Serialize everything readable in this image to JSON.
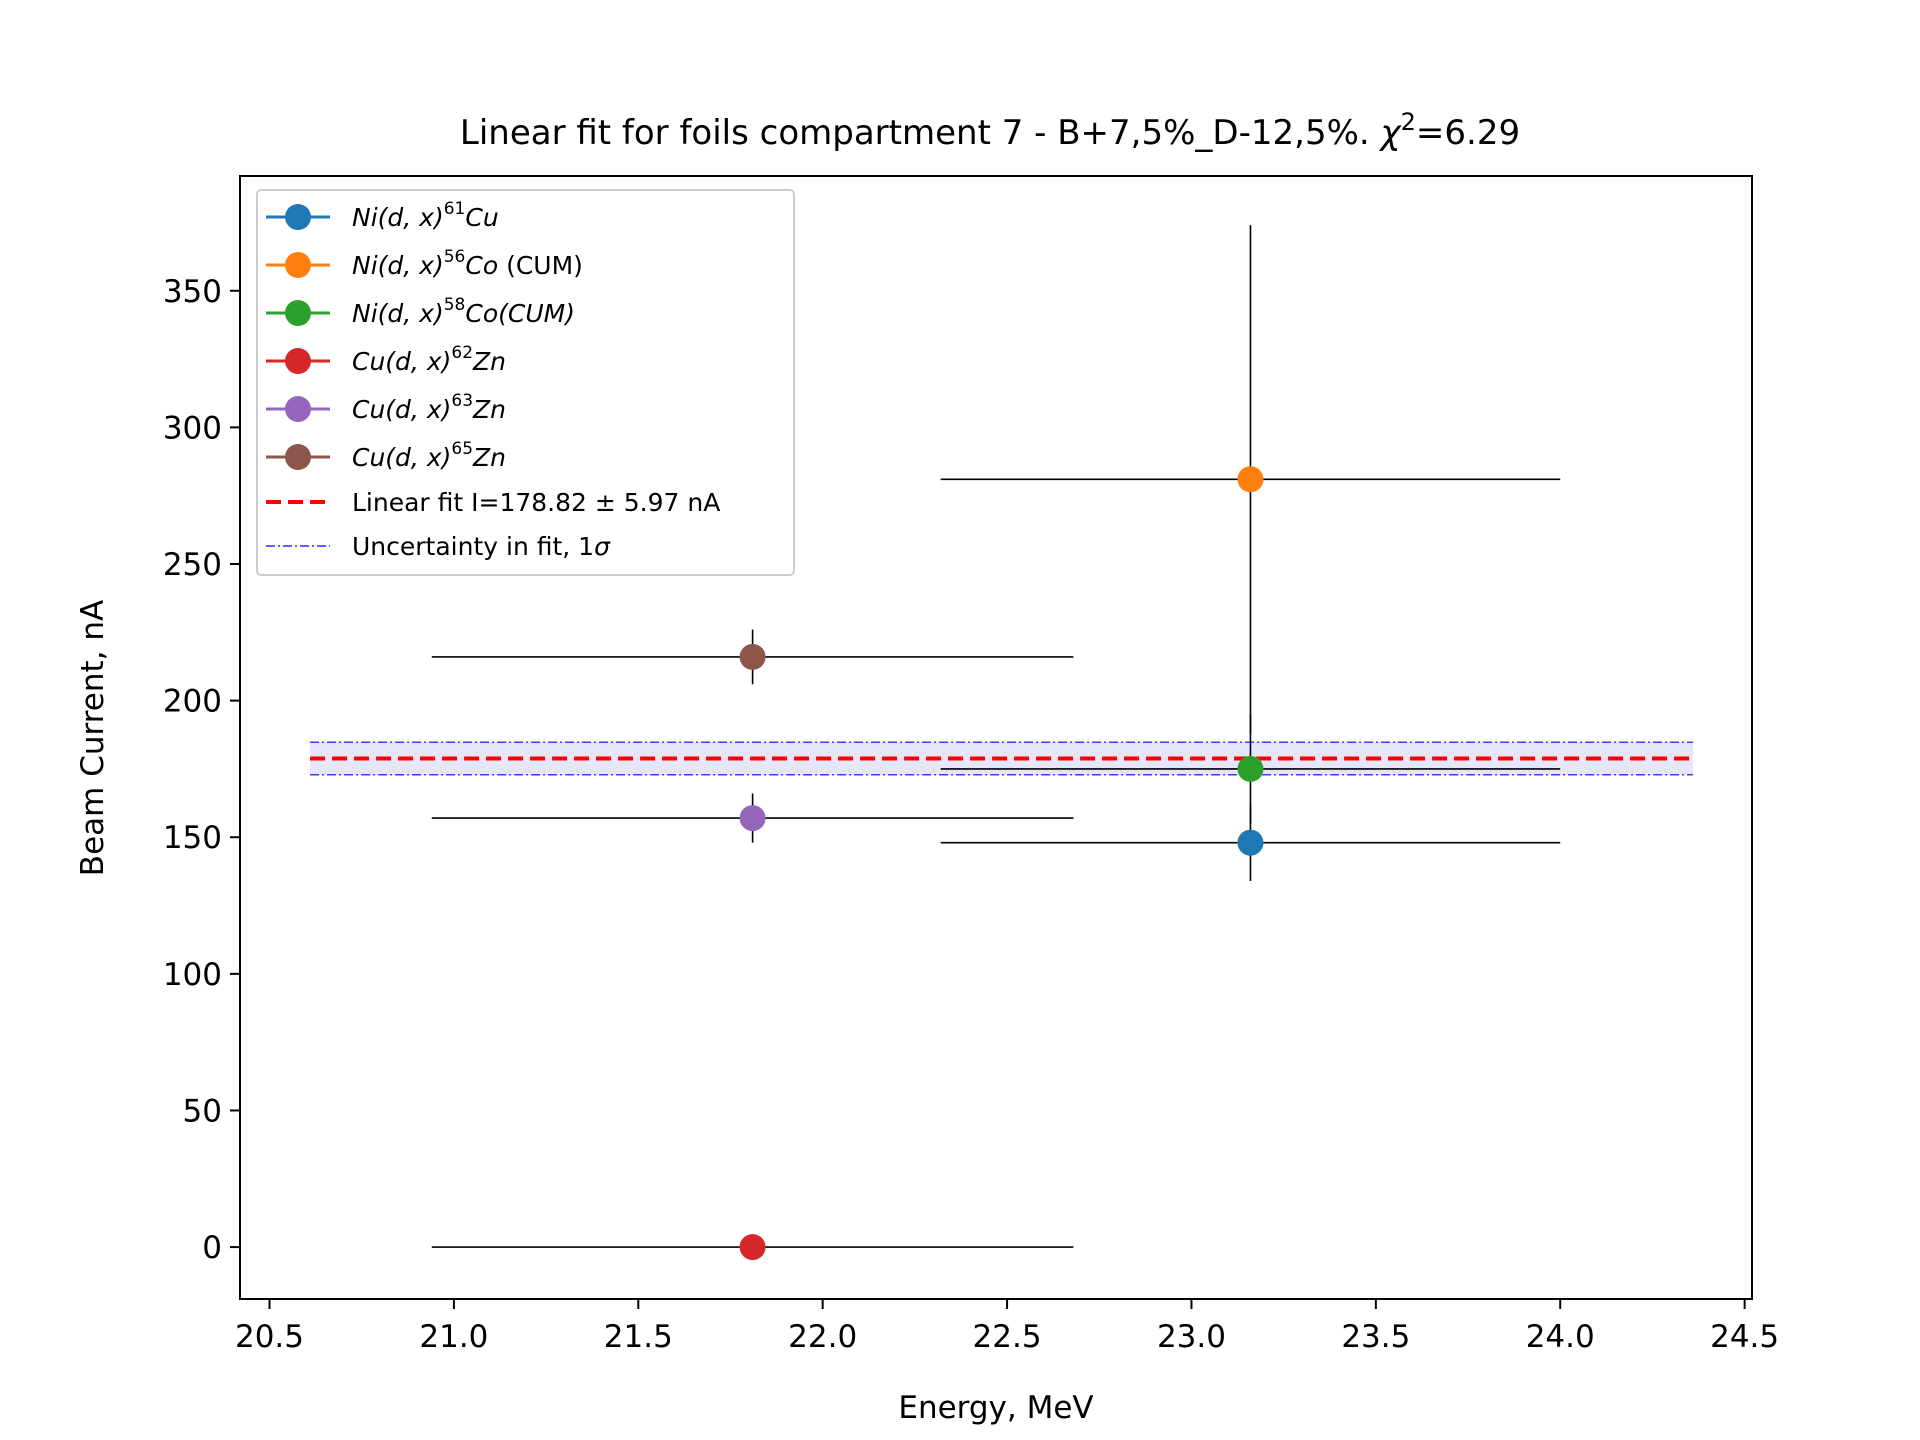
{
  "chart_data": {
    "type": "scatter",
    "title": "Linear fit for foils compartment 7 - B+7,5%_D-12,5%. χ²=6.29",
    "title_parts": {
      "main": "Linear fit for foils compartment 7 - B+7,5%_D-12,5%. ",
      "chi": "χ",
      "chi_sup": "2",
      "chi_value": "=6.29"
    },
    "xlabel": "Energy, MeV",
    "ylabel": "Beam Current, nA",
    "xlim": [
      20.42,
      24.52
    ],
    "ylim": [
      -19,
      392
    ],
    "xticks": [
      20.5,
      21.0,
      21.5,
      22.0,
      22.5,
      23.0,
      23.5,
      24.0,
      24.5
    ],
    "xtick_labels": [
      "20.5",
      "21.0",
      "21.5",
      "22.0",
      "22.5",
      "23.0",
      "23.5",
      "24.0",
      "24.5"
    ],
    "yticks": [
      0,
      50,
      100,
      150,
      200,
      250,
      300,
      350
    ],
    "ytick_labels": [
      "0",
      "50",
      "100",
      "150",
      "200",
      "250",
      "300",
      "350"
    ],
    "grid": false,
    "legend_position": "upper-left",
    "series": [
      {
        "name": "Ni(d,x)61Cu",
        "label": {
          "pre": "Ni(d, x)",
          "sup": "61",
          "post": "Cu",
          "suffix": ""
        },
        "color": "#1f77b4",
        "x": 23.16,
        "y": 148,
        "xerr": 0.84,
        "yerr": 14
      },
      {
        "name": "Ni(d,x)56Co (CUM)",
        "label": {
          "pre": "Ni(d, x)",
          "sup": "56",
          "post": "Co",
          "suffix": " (CUM)"
        },
        "color": "#ff7f0e",
        "x": 23.16,
        "y": 281,
        "xerr": 0.84,
        "yerr": 93
      },
      {
        "name": "Ni(d,x)58Co(CUM)",
        "label": {
          "pre": "Ni(d, x)",
          "sup": "58",
          "post": "Co(CUM)",
          "suffix": ""
        },
        "color": "#2ca02c",
        "x": 23.16,
        "y": 175,
        "xerr": 0.84,
        "yerr": 20
      },
      {
        "name": "Cu(d,x)62Zn",
        "label": {
          "pre": "Cu(d, x)",
          "sup": "62",
          "post": "Zn",
          "suffix": ""
        },
        "color": "#d62728",
        "x": 21.81,
        "y": 0,
        "xerr": 0.87,
        "yerr": 0
      },
      {
        "name": "Cu(d,x)63Zn",
        "label": {
          "pre": "Cu(d, x)",
          "sup": "63",
          "post": "Zn",
          "suffix": ""
        },
        "color": "#9467bd",
        "x": 21.81,
        "y": 157,
        "xerr": 0.87,
        "yerr": 9
      },
      {
        "name": "Cu(d,x)65Zn",
        "label": {
          "pre": "Cu(d, x)",
          "sup": "65",
          "post": "Zn",
          "suffix": ""
        },
        "color": "#8c564b",
        "x": 21.81,
        "y": 216,
        "xerr": 0.87,
        "yerr": 10
      }
    ],
    "fit": {
      "label": "Linear fit I=178.82 ± 5.97 nA",
      "value": 178.82,
      "uncertainty": 5.97,
      "x_range": [
        20.61,
        24.36
      ],
      "color": "#ff0000"
    },
    "uncertainty_band": {
      "label_pre": "Uncertainty in fit, 1",
      "label_sigma": "σ",
      "color": "#0000ff",
      "fill": "#e6e6fa"
    }
  }
}
